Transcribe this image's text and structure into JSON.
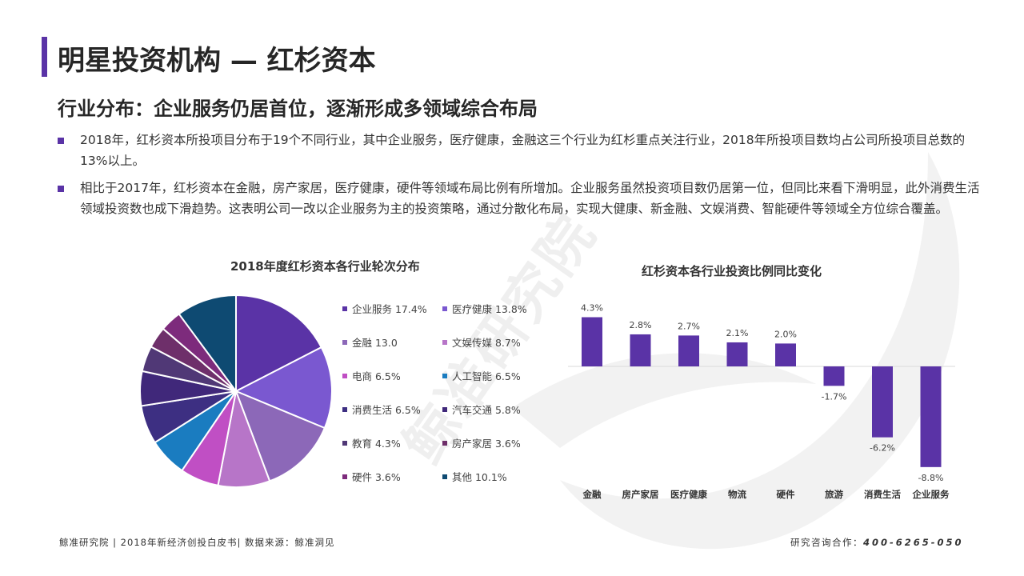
{
  "header": {
    "title": "明星投资机构 — 红杉资本",
    "subtitle": "行业分布：企业服务仍居首位，逐渐形成多领域综合布局"
  },
  "bullets": [
    "2018年，红杉资本所投项目分布于19个不同行业，其中企业服务，医疗健康，金融这三个行业为红杉重点关注行业，2018年所投项目数均占公司所投项目总数的13%以上。",
    "相比于2017年，红杉资本在金融，房产家居，医疗健康，硬件等领域布局比例有所增加。企业服务虽然投资项目数仍居第一位，但同比来看下滑明显，此外消费生活领域投资数也成下滑趋势。这表明公司一改以企业服务为主的投资策略，通过分散化布局，实现大健康、新金融、文娱消费、智能硬件等领域全方位综合覆盖。"
  ],
  "watermark": "鲸准研究院",
  "colors": {
    "accent": "#5a33a6",
    "bar": "#5a33a6",
    "text": "#262626"
  },
  "chart_data": [
    {
      "type": "pie",
      "title": "2018年度红杉资本各行业轮次分布",
      "slices": [
        {
          "label": "企业服务",
          "value_text": "17.4%",
          "value": 17.4,
          "color": "#5a33a6"
        },
        {
          "label": "医疗健康",
          "value_text": "13.8%",
          "value": 13.8,
          "color": "#7a58d0"
        },
        {
          "label": "金融",
          "value_text": "13.0",
          "value": 13.0,
          "color": "#8c68b8"
        },
        {
          "label": "文娱传媒",
          "value_text": "8.7%",
          "value": 8.7,
          "color": "#b775c8"
        },
        {
          "label": "电商",
          "value_text": "6.5%",
          "value": 6.5,
          "color": "#c04fc4"
        },
        {
          "label": "人工智能",
          "value_text": "6.5%",
          "value": 6.5,
          "color": "#1a7cc0"
        },
        {
          "label": "消费生活",
          "value_text": "6.5%",
          "value": 6.5,
          "color": "#3d2f82"
        },
        {
          "label": "汽车交通",
          "value_text": "5.8%",
          "value": 5.8,
          "color": "#40287a"
        },
        {
          "label": "教育",
          "value_text": "4.3%",
          "value": 4.3,
          "color": "#503876"
        },
        {
          "label": "房产家居",
          "value_text": "3.6%",
          "value": 3.6,
          "color": "#6e2f6a"
        },
        {
          "label": "硬件",
          "value_text": "3.6%",
          "value": 3.6,
          "color": "#7d2b7c"
        },
        {
          "label": "其他",
          "value_text": "10.1%",
          "value": 10.1,
          "color": "#0e4a72"
        }
      ]
    },
    {
      "type": "bar",
      "title": "红杉资本各行业投资比例同比变化",
      "categories": [
        "金融",
        "房产家居",
        "医疗健康",
        "物流",
        "硬件",
        "旅游",
        "消费生活",
        "企业服务"
      ],
      "values": [
        4.3,
        2.8,
        2.7,
        2.1,
        2.0,
        -1.7,
        -6.2,
        -8.8
      ],
      "labels": [
        "4.3%",
        "2.8%",
        "2.7%",
        "2.1%",
        "2.0%",
        "-1.7%",
        "-6.2%",
        "-8.8%"
      ],
      "color": "#5a33a6"
    }
  ],
  "footer": {
    "left": "鲸准研究院 | 2018年新经济创投白皮书| 数据来源：鲸准洞见",
    "right_label": "研究咨询合作：",
    "right_phone": "400-6265-050"
  }
}
